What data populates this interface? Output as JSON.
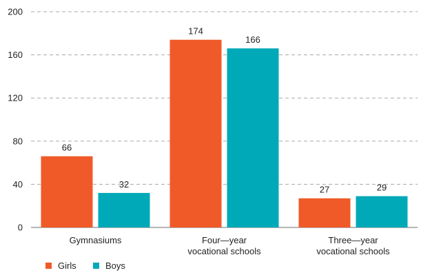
{
  "chart_data": {
    "type": "bar",
    "title": "",
    "xlabel": "",
    "ylabel": "",
    "categories": [
      [
        "Gymnasiums"
      ],
      [
        "Four—year",
        "vocational schools"
      ],
      [
        "Three—year",
        "vocational schools"
      ]
    ],
    "series": [
      {
        "name": "Girls",
        "color": "#f05a28",
        "values": [
          66,
          174,
          27
        ]
      },
      {
        "name": "Boys",
        "color": "#00a9b8",
        "values": [
          32,
          166,
          29
        ]
      }
    ],
    "ylim": [
      0,
      200
    ],
    "yticks": [
      "0",
      "40",
      "80",
      "120",
      "160",
      "200"
    ],
    "grid": true,
    "legend_position": "bottom-left"
  }
}
